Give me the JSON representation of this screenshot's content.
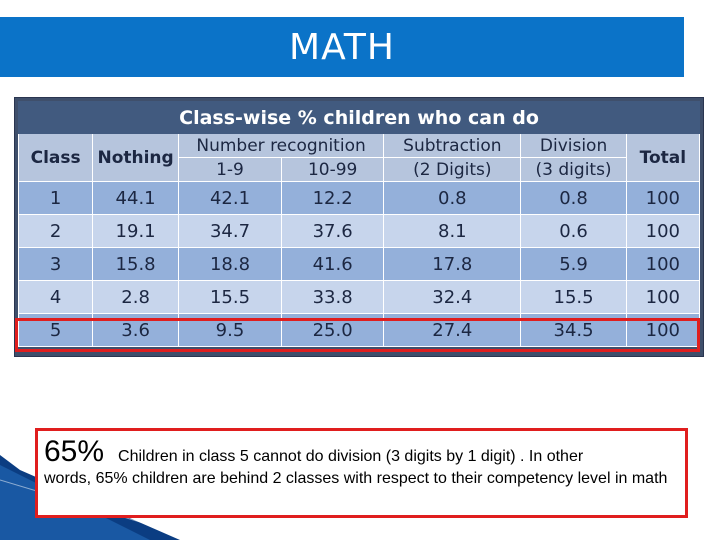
{
  "title": "MATH",
  "table": {
    "caption": "Class-wise % children who can do",
    "headers": {
      "class": "Class",
      "nothing": "Nothing",
      "number_recognition": "Number recognition",
      "nr_sub1": "1-9",
      "nr_sub2": "10-99",
      "subtraction": "Subtraction",
      "subtraction_sub": "(2 Digits)",
      "division": "Division",
      "division_sub": "(3 digits)",
      "total": "Total"
    },
    "rows": [
      [
        "1",
        "44.1",
        "42.1",
        "12.2",
        "0.8",
        "0.8",
        "100"
      ],
      [
        "2",
        "19.1",
        "34.7",
        "37.6",
        "8.1",
        "0.6",
        "100"
      ],
      [
        "3",
        "15.8",
        "18.8",
        "41.6",
        "17.8",
        "5.9",
        "100"
      ],
      [
        "4",
        "2.8",
        "15.5",
        "33.8",
        "32.4",
        "15.5",
        "100"
      ],
      [
        "5",
        "3.6",
        "9.5",
        "25.0",
        "27.4",
        "34.5",
        "100"
      ]
    ]
  },
  "callout": {
    "percent": "65%",
    "text_first": "Children in class 5 cannot do division (3 digits by 1 digit) . In other",
    "text_rest": "words, 65% children are behind 2 classes with respect to their competency level in math"
  },
  "colors": {
    "title_bar": "#0b73c8",
    "table_header": "#415a7f",
    "highlight": "#e01e1e"
  }
}
